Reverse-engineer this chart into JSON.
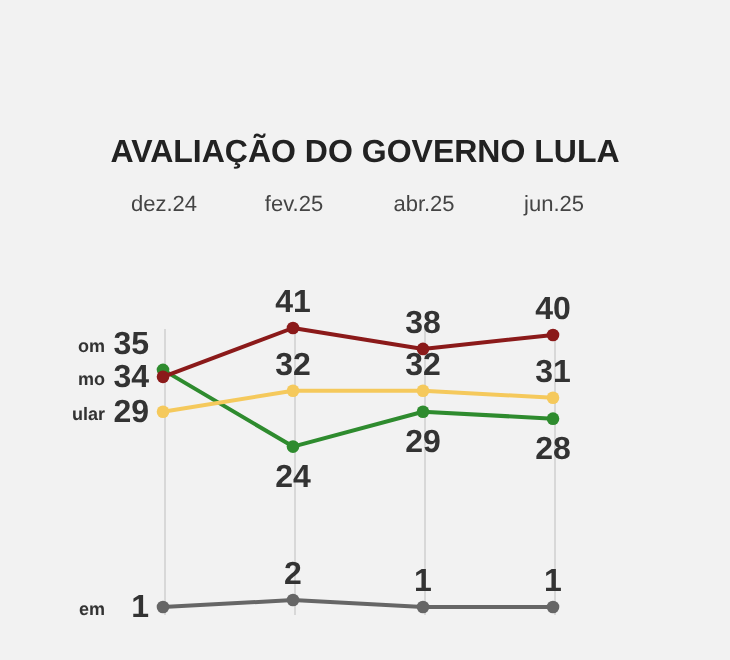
{
  "chart_data": {
    "type": "line",
    "title": "AVALIAÇÃO DO GOVERNO LULA",
    "categories": [
      "dez.24",
      "fev.25",
      "abr.25",
      "jun.25"
    ],
    "series": [
      {
        "name": "om",
        "color": "#2e8b2e",
        "values": [
          35,
          24,
          29,
          28
        ]
      },
      {
        "name": "mo",
        "color": "#8b1a1a",
        "values": [
          34,
          41,
          38,
          40
        ]
      },
      {
        "name": "ular",
        "color": "#f5c95c",
        "values": [
          29,
          32,
          32,
          31
        ]
      },
      {
        "name": "em",
        "color": "#666666",
        "values": [
          1,
          2,
          1,
          1
        ]
      }
    ],
    "grid": "x",
    "marker": "circle",
    "data_labels": true,
    "tick_labels": "x",
    "legend": false
  }
}
